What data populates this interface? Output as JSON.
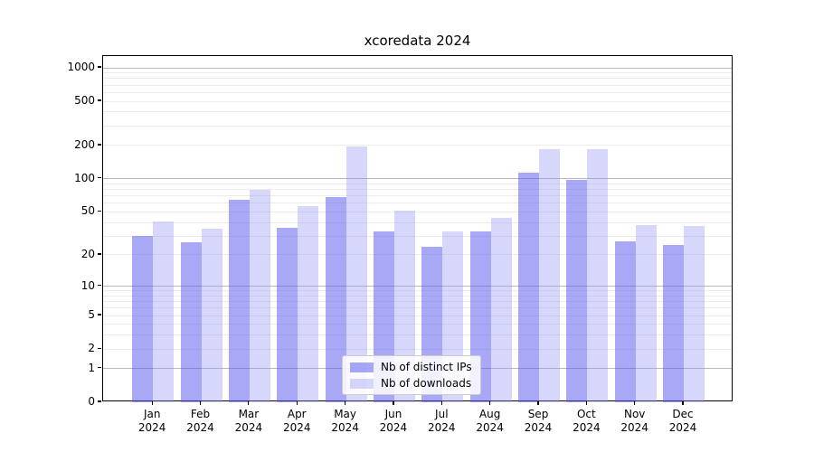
{
  "chart_data": {
    "type": "bar",
    "title": "xcoredata 2024",
    "scale": "log1p",
    "categories": [
      "Jan",
      "Feb",
      "Mar",
      "Apr",
      "May",
      "Jun",
      "Jul",
      "Aug",
      "Sep",
      "Oct",
      "Nov",
      "Dec"
    ],
    "x_year_label": "2024",
    "series": [
      {
        "name": "Nb of distinct IPs",
        "color": "rgba(90,90,240,0.53)",
        "values": [
          30,
          26,
          65,
          36,
          68,
          33,
          24,
          33,
          113,
          98,
          27,
          25
        ]
      },
      {
        "name": "Nb of downloads",
        "color": "rgba(150,150,245,0.38)",
        "values": [
          41,
          35,
          80,
          57,
          197,
          51,
          33,
          44,
          186,
          186,
          38,
          37
        ]
      }
    ],
    "y_ticks": [
      0,
      1,
      2,
      5,
      10,
      20,
      50,
      100,
      200,
      500,
      1000
    ],
    "y_major_gridlines": [
      1,
      10,
      100,
      1000
    ],
    "ylim": [
      0,
      1100
    ],
    "grid": true,
    "legend_position": "bottom-center"
  }
}
